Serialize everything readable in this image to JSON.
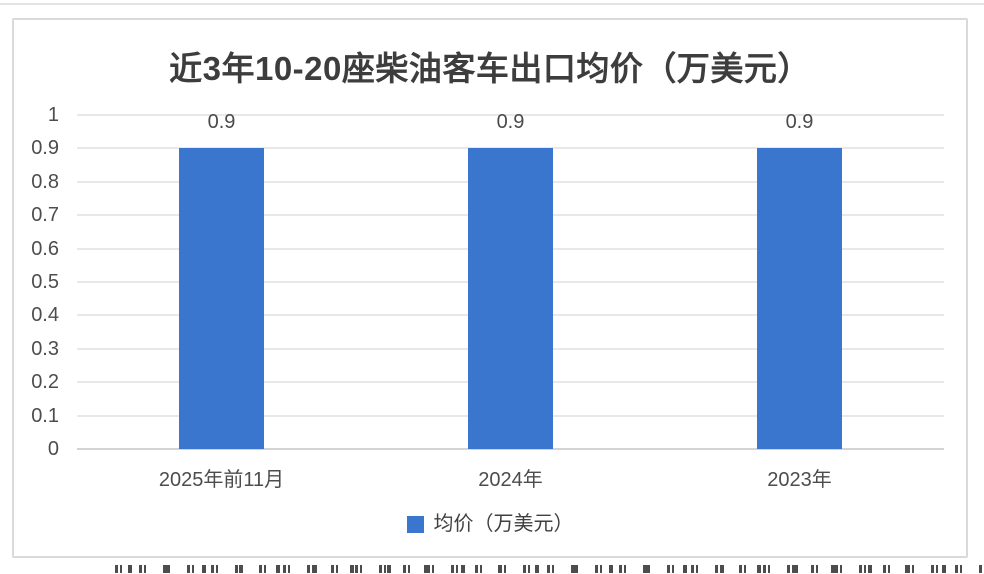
{
  "theme": {
    "bar_color": "#3b76ce",
    "grid_color": "#e8e8e8",
    "axis_color": "#d4d4d4",
    "frame_border_color": "#dadada",
    "title_color": "#3d3d3d",
    "label_color": "#4d4d4d",
    "background": "#ffffff"
  },
  "chart_data": {
    "type": "bar",
    "title": "近3年10-20座柴油客车出口均价（万美元）",
    "categories": [
      "2025年前11月",
      "2024年",
      "2023年"
    ],
    "series": [
      {
        "name": "均价（万美元）",
        "values": [
          0.9,
          0.9,
          0.9
        ]
      }
    ],
    "data_labels": [
      "0.9",
      "0.9",
      "0.9"
    ],
    "legend_label": "均价（万美元）",
    "legend_position": "bottom",
    "xlabel": "",
    "ylabel": "",
    "ylim": [
      0,
      1
    ],
    "yticks": [
      1,
      0.9,
      0.8,
      0.7,
      0.6,
      0.5,
      0.4,
      0.3,
      0.2,
      0.1,
      0
    ],
    "ytick_labels": [
      "1",
      "0.9",
      "0.8",
      "0.7",
      "0.6",
      "0.5",
      "0.4",
      "0.3",
      "0.2",
      "0.1",
      "0"
    ],
    "grid": true
  }
}
